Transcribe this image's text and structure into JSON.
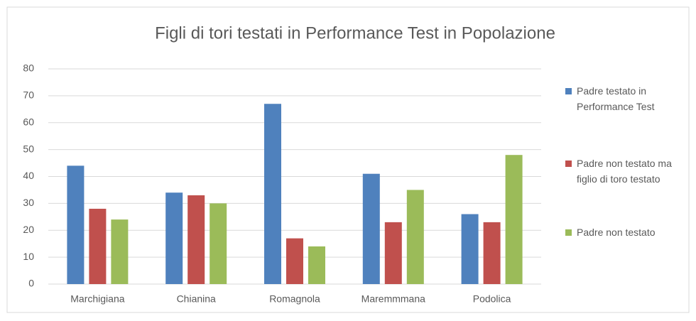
{
  "chart_data": {
    "type": "bar",
    "title": "Figli di tori testati in Performance Test in Popolazione",
    "categories": [
      "Marchigiana",
      "Chianina",
      "Romagnola",
      "Maremmmana",
      "Podolica"
    ],
    "series": [
      {
        "name": "Padre testato in Performance Test",
        "color": "#4f81bd",
        "values": [
          44,
          34,
          67,
          41,
          26
        ]
      },
      {
        "name": "Padre non testato ma figlio di toro testato",
        "color": "#c0504d",
        "values": [
          28,
          33,
          17,
          23,
          23
        ]
      },
      {
        "name": "Padre non testato",
        "color": "#9bbb59",
        "values": [
          24,
          30,
          14,
          35,
          48
        ]
      }
    ],
    "ylim": [
      0,
      80
    ],
    "yticks": [
      0,
      10,
      20,
      30,
      40,
      50,
      60,
      70,
      80
    ],
    "grid": true,
    "legend": "right"
  }
}
